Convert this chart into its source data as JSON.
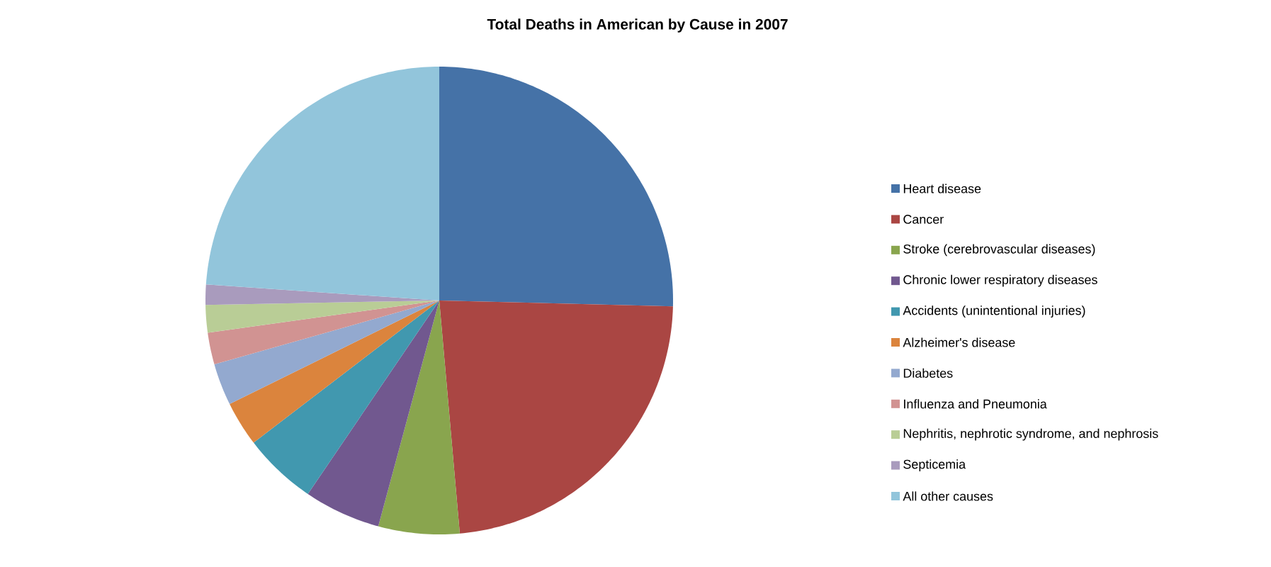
{
  "chart_data": {
    "type": "pie",
    "title": "Total Deaths in American by Cause in 2007",
    "categories": [
      "Heart disease",
      "Cancer",
      "Stroke (cerebrovascular diseases)",
      "Chronic lower respiratory diseases",
      "Accidents (unintentional injuries)",
      "Alzheimer's disease",
      "Diabetes",
      "Influenza and Pneumonia",
      "Nephritis, nephrotic syndrome, and nephrosis",
      "Septicemia",
      "All other causes"
    ],
    "values": [
      25.4,
      23.2,
      5.6,
      5.3,
      5.1,
      3.1,
      2.9,
      2.2,
      1.9,
      1.4,
      23.9
    ],
    "colors": [
      "#4572a7",
      "#aa4643",
      "#89a54e",
      "#71588f",
      "#4198af",
      "#db843d",
      "#93a9cf",
      "#d19392",
      "#b9cd96",
      "#a99bbd",
      "#92c5db"
    ],
    "legend": "right"
  }
}
